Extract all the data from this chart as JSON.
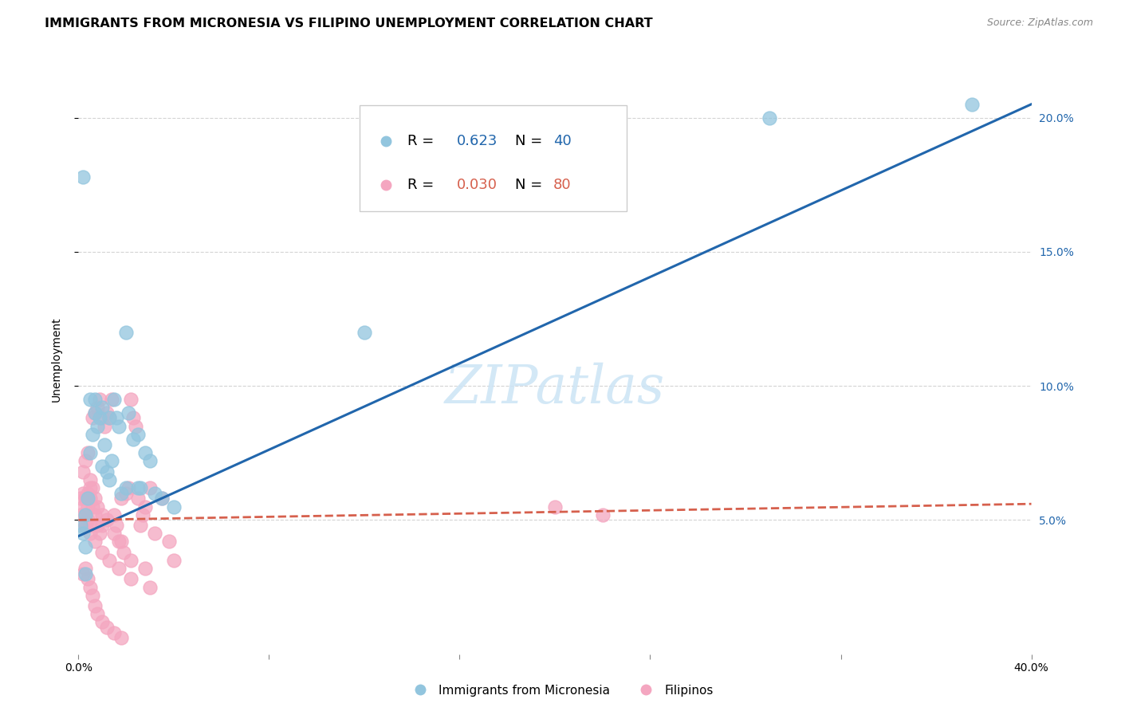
{
  "title": "IMMIGRANTS FROM MICRONESIA VS FILIPINO UNEMPLOYMENT CORRELATION CHART",
  "source": "Source: ZipAtlas.com",
  "ylabel": "Unemployment",
  "watermark": "ZIPatlas",
  "legend_blue_r": "R = ",
  "legend_blue_r_val": "0.623",
  "legend_blue_n": "N = ",
  "legend_blue_n_val": "40",
  "legend_pink_r": "R = ",
  "legend_pink_r_val": "0.030",
  "legend_pink_n": "N = ",
  "legend_pink_n_val": "80",
  "legend_label_blue": "Immigrants from Micronesia",
  "legend_label_pink": "Filipinos",
  "blue_color": "#92c5de",
  "pink_color": "#f4a6c0",
  "trendline_blue": "#2166ac",
  "trendline_pink": "#d6604d",
  "xlim": [
    0.0,
    0.4
  ],
  "ylim": [
    0.0,
    0.22
  ],
  "yticks": [
    0.05,
    0.1,
    0.15,
    0.2
  ],
  "ytick_labels": [
    "5.0%",
    "10.0%",
    "15.0%",
    "20.0%"
  ],
  "blue_trend_x0": 0.0,
  "blue_trend_y0": 0.044,
  "blue_trend_x1": 0.4,
  "blue_trend_y1": 0.205,
  "pink_trend_x0": 0.0,
  "pink_trend_y0": 0.05,
  "pink_trend_x1": 0.4,
  "pink_trend_y1": 0.056,
  "blue_points_x": [
    0.001,
    0.002,
    0.003,
    0.004,
    0.005,
    0.006,
    0.007,
    0.008,
    0.009,
    0.01,
    0.011,
    0.012,
    0.013,
    0.014,
    0.016,
    0.017,
    0.018,
    0.02,
    0.021,
    0.023,
    0.025,
    0.026,
    0.028,
    0.03,
    0.032,
    0.035,
    0.04,
    0.002,
    0.003,
    0.005,
    0.007,
    0.01,
    0.013,
    0.015,
    0.02,
    0.025,
    0.003,
    0.12,
    0.29,
    0.375
  ],
  "blue_points_y": [
    0.048,
    0.045,
    0.052,
    0.058,
    0.075,
    0.082,
    0.09,
    0.085,
    0.088,
    0.07,
    0.078,
    0.068,
    0.065,
    0.072,
    0.088,
    0.085,
    0.06,
    0.062,
    0.09,
    0.08,
    0.082,
    0.062,
    0.075,
    0.072,
    0.06,
    0.058,
    0.055,
    0.178,
    0.04,
    0.095,
    0.095,
    0.092,
    0.088,
    0.095,
    0.12,
    0.062,
    0.03,
    0.12,
    0.2,
    0.205
  ],
  "pink_points_x": [
    0.001,
    0.001,
    0.002,
    0.002,
    0.003,
    0.003,
    0.003,
    0.004,
    0.004,
    0.004,
    0.005,
    0.005,
    0.005,
    0.006,
    0.006,
    0.007,
    0.007,
    0.008,
    0.008,
    0.009,
    0.009,
    0.01,
    0.01,
    0.011,
    0.012,
    0.013,
    0.014,
    0.015,
    0.016,
    0.017,
    0.018,
    0.019,
    0.02,
    0.021,
    0.022,
    0.023,
    0.024,
    0.025,
    0.026,
    0.027,
    0.028,
    0.03,
    0.032,
    0.035,
    0.038,
    0.04,
    0.002,
    0.003,
    0.004,
    0.005,
    0.006,
    0.007,
    0.008,
    0.01,
    0.012,
    0.015,
    0.018,
    0.002,
    0.003,
    0.004,
    0.005,
    0.006,
    0.007,
    0.008,
    0.01,
    0.012,
    0.015,
    0.018,
    0.022,
    0.028,
    0.003,
    0.005,
    0.007,
    0.01,
    0.013,
    0.017,
    0.022,
    0.03,
    0.2,
    0.22
  ],
  "pink_points_y": [
    0.058,
    0.052,
    0.06,
    0.055,
    0.048,
    0.052,
    0.058,
    0.06,
    0.055,
    0.05,
    0.062,
    0.058,
    0.048,
    0.088,
    0.055,
    0.09,
    0.052,
    0.092,
    0.048,
    0.095,
    0.045,
    0.088,
    0.048,
    0.085,
    0.09,
    0.088,
    0.095,
    0.052,
    0.048,
    0.042,
    0.058,
    0.038,
    0.06,
    0.062,
    0.095,
    0.088,
    0.085,
    0.058,
    0.048,
    0.052,
    0.055,
    0.062,
    0.045,
    0.058,
    0.042,
    0.035,
    0.068,
    0.072,
    0.075,
    0.065,
    0.062,
    0.058,
    0.055,
    0.052,
    0.05,
    0.045,
    0.042,
    0.03,
    0.032,
    0.028,
    0.025,
    0.022,
    0.018,
    0.015,
    0.012,
    0.01,
    0.008,
    0.006,
    0.035,
    0.032,
    0.048,
    0.045,
    0.042,
    0.038,
    0.035,
    0.032,
    0.028,
    0.025,
    0.055,
    0.052
  ],
  "title_fontsize": 11.5,
  "source_fontsize": 9,
  "axis_label_fontsize": 10,
  "tick_fontsize": 10,
  "legend_fontsize": 13,
  "watermark_fontsize": 48,
  "background_color": "#ffffff",
  "grid_color": "#d0d0d0"
}
